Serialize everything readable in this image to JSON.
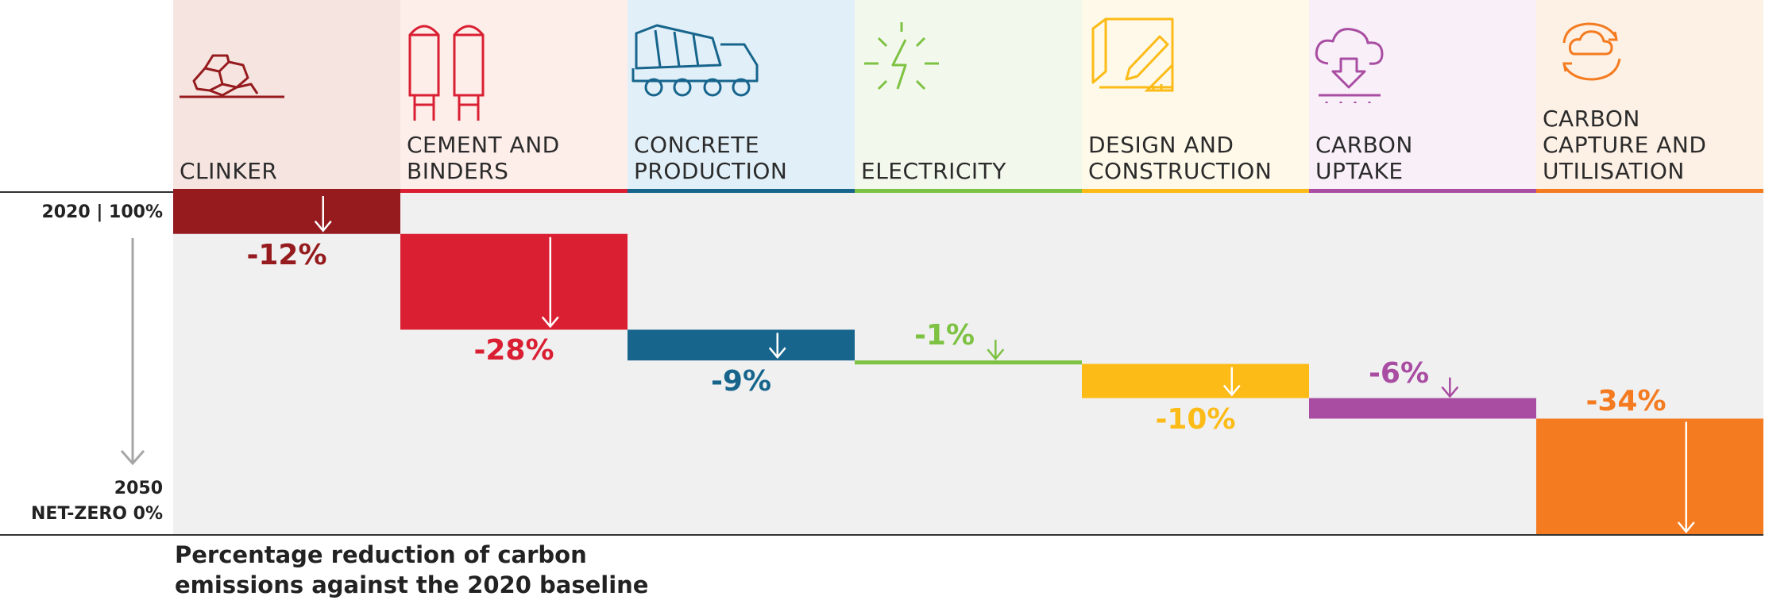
{
  "chart_data": {
    "type": "waterfall",
    "title": "",
    "start_label": "2020 | 100%",
    "end_label_line1": "2050",
    "end_label_line2": "NET-ZERO 0%",
    "caption_line1": "Percentage reduction of carbon",
    "caption_line2": "emissions against the 2020 baseline",
    "ylim": [
      0,
      100
    ],
    "categories": [
      {
        "label": [
          "CLINKER"
        ],
        "value": -12,
        "value_label": "-12%",
        "color": "#951b1e",
        "icon": "rocks-icon",
        "bg": "#f6e4e0"
      },
      {
        "label": [
          "CEMENT AND",
          "BINDERS"
        ],
        "value": -28,
        "value_label": "-28%",
        "color": "#da1f33",
        "icon": "silos-icon",
        "bg": "#fdeeea"
      },
      {
        "label": [
          "CONCRETE",
          "PRODUCTION"
        ],
        "value": -9,
        "value_label": "-9%",
        "color": "#17658c",
        "icon": "concrete-mixer-truck-icon",
        "bg": "#e1eff8"
      },
      {
        "label": [
          "ELECTRICITY"
        ],
        "value": -1,
        "value_label": "-1%",
        "color": "#7dc242",
        "icon": "lightning-bolt-icon",
        "bg": "#f2f8ec"
      },
      {
        "label": [
          "DESIGN AND",
          "CONSTRUCTION"
        ],
        "value": -10,
        "value_label": "-10%",
        "color": "#fcbb16",
        "icon": "blueprint-pencil-icon",
        "bg": "#fff9ea"
      },
      {
        "label": [
          "CARBON",
          "UPTAKE"
        ],
        "value": -6,
        "value_label": "-6%",
        "color": "#a94da3",
        "icon": "co2-uptake-icon",
        "bg": "#f8eff8"
      },
      {
        "label": [
          "CARBON",
          "CAPTURE AND",
          "UTILISATION"
        ],
        "value": -34,
        "value_label": "-34%",
        "color": "#f47b20",
        "icon": "co2-recycle-icon",
        "bg": "#fdf0e4"
      }
    ]
  }
}
